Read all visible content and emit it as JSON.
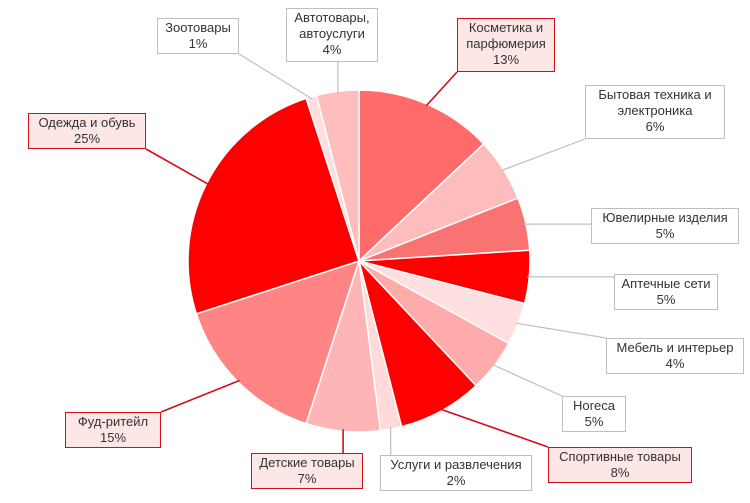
{
  "chart_data": {
    "type": "pie",
    "start_angle_deg": 0,
    "direction": "clockwise",
    "slices": [
      {
        "label": "Косметика и\nпарфюмерия",
        "percent_label": "13%",
        "value": 13,
        "color": "#ff6b6b",
        "highlight": true
      },
      {
        "label": "Бытовая техника и\nэлектроника",
        "percent_label": "6%",
        "value": 6,
        "color": "#ffbcbc",
        "highlight": false
      },
      {
        "label": "Ювелирные изделия",
        "percent_label": "5%",
        "value": 5,
        "color": "#fa7373",
        "highlight": false
      },
      {
        "label": "Аптечные сети",
        "percent_label": "5%",
        "value": 5,
        "color": "#ff0000",
        "highlight": false
      },
      {
        "label": "Мебель и интерьер",
        "percent_label": "4%",
        "value": 4,
        "color": "#ffe0e0",
        "highlight": false
      },
      {
        "label": "Horeca",
        "percent_label": "5%",
        "value": 5,
        "color": "#ffabab",
        "highlight": false
      },
      {
        "label": "Спортивные товары",
        "percent_label": "8%",
        "value": 8,
        "color": "#ff0000",
        "highlight": true
      },
      {
        "label": "Услуги и развлечения",
        "percent_label": "2%",
        "value": 2,
        "color": "#ffdada",
        "highlight": false
      },
      {
        "label": "Детские товары",
        "percent_label": "7%",
        "value": 7,
        "color": "#ffb5b5",
        "highlight": true
      },
      {
        "label": "Фуд-ритейл",
        "percent_label": "15%",
        "value": 15,
        "color": "#ff8585",
        "highlight": true
      },
      {
        "label": "Одежда и обувь",
        "percent_label": "25%",
        "value": 25,
        "color": "#ff0000",
        "highlight": true
      },
      {
        "label": "Зоотовары",
        "percent_label": "1%",
        "value": 1,
        "color": "#ffdede",
        "highlight": false
      },
      {
        "label": "Автотовары,\nавтоуслуги",
        "percent_label": "4%",
        "value": 4,
        "color": "#ffbdbd",
        "highlight": false
      }
    ],
    "legend": "none",
    "leader_line_color": "#bfbfbf",
    "highlight_color": "#d0101b"
  }
}
